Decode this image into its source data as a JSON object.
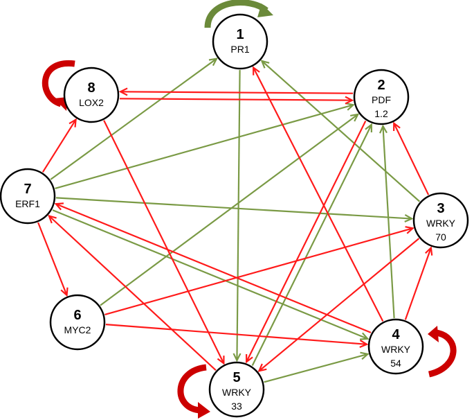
{
  "colors": {
    "activation": "#7a9a45",
    "repression": "#ff1a1a",
    "self_activation": "#6b8a3a",
    "self_repression": "#cc0000"
  },
  "nodes": [
    {
      "id": "1",
      "label": [
        "PR1"
      ]
    },
    {
      "id": "2",
      "label": [
        "PDF",
        "1.2"
      ]
    },
    {
      "id": "3",
      "label": [
        "WRKY",
        "70"
      ]
    },
    {
      "id": "4",
      "label": [
        "WRKY",
        "54"
      ]
    },
    {
      "id": "5",
      "label": [
        "WRKY",
        "33"
      ]
    },
    {
      "id": "6",
      "label": [
        "MYC2"
      ]
    },
    {
      "id": "7",
      "label": [
        "ERF1"
      ]
    },
    {
      "id": "8",
      "label": [
        "LOX2"
      ]
    }
  ],
  "edges": [
    {
      "from": "1",
      "to": "5",
      "type": "activation"
    },
    {
      "from": "7",
      "to": "1",
      "type": "activation"
    },
    {
      "from": "7",
      "to": "2",
      "type": "activation"
    },
    {
      "from": "7",
      "to": "3",
      "type": "activation"
    },
    {
      "from": "7",
      "to": "4",
      "type": "activation"
    },
    {
      "from": "6",
      "to": "2",
      "type": "activation"
    },
    {
      "from": "5",
      "to": "2",
      "type": "activation"
    },
    {
      "from": "4",
      "to": "2",
      "type": "activation"
    },
    {
      "from": "3",
      "to": "1",
      "type": "activation"
    },
    {
      "from": "5",
      "to": "4",
      "type": "activation"
    },
    {
      "from": "8",
      "to": "2",
      "type": "repression"
    },
    {
      "from": "2",
      "to": "8",
      "type": "repression"
    },
    {
      "from": "8",
      "to": "5",
      "type": "repression"
    },
    {
      "from": "7",
      "to": "8",
      "type": "repression"
    },
    {
      "from": "7",
      "to": "6",
      "type": "repression"
    },
    {
      "from": "5",
      "to": "7",
      "type": "repression"
    },
    {
      "from": "4",
      "to": "7",
      "type": "repression"
    },
    {
      "from": "4",
      "to": "1",
      "type": "repression"
    },
    {
      "from": "3",
      "to": "2",
      "type": "repression"
    },
    {
      "from": "3",
      "to": "5",
      "type": "repression"
    },
    {
      "from": "2",
      "to": "5",
      "type": "repression"
    },
    {
      "from": "6",
      "to": "3",
      "type": "repression"
    },
    {
      "from": "6",
      "to": "4",
      "type": "repression"
    },
    {
      "from": "4",
      "to": "3",
      "type": "repression"
    }
  ],
  "self_loops": [
    {
      "node": "1",
      "type": "activation"
    },
    {
      "node": "8",
      "type": "repression"
    },
    {
      "node": "4",
      "type": "repression"
    },
    {
      "node": "5",
      "type": "repression"
    }
  ]
}
